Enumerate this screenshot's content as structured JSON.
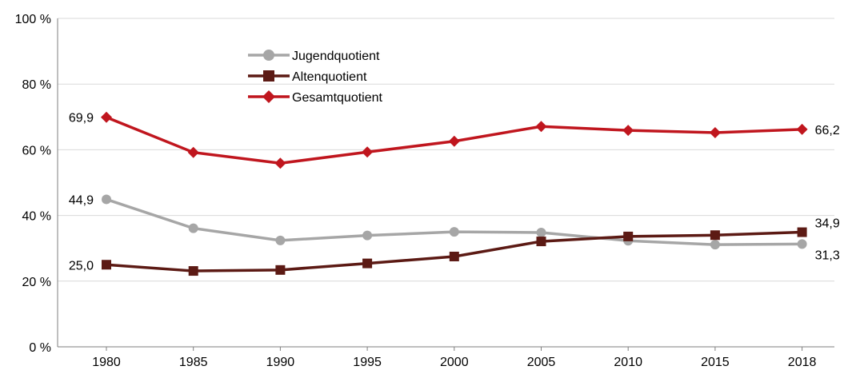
{
  "chart_data": {
    "type": "line",
    "title": "",
    "xlabel": "",
    "ylabel": "",
    "x": [
      "1980",
      "1985",
      "1990",
      "1995",
      "2000",
      "2005",
      "2010",
      "2015",
      "2018"
    ],
    "ylim": [
      0,
      100
    ],
    "y_ticks": [
      0,
      20,
      40,
      60,
      80,
      100
    ],
    "y_tick_labels": [
      "0 %",
      "20 %",
      "40 %",
      "60 %",
      "80 %",
      "100 %"
    ],
    "grid": "horizontal",
    "legend_position": "top-left",
    "series": [
      {
        "name": "Jugendquotient",
        "color": "#a6a6a6",
        "marker": "circle",
        "values": [
          44.9,
          36.1,
          32.4,
          33.9,
          35.0,
          34.8,
          32.3,
          31.1,
          31.3
        ]
      },
      {
        "name": "Altenquotient",
        "color": "#5c1a14",
        "marker": "square",
        "values": [
          25.0,
          23.1,
          23.4,
          25.4,
          27.5,
          32.1,
          33.6,
          34.0,
          34.9
        ]
      },
      {
        "name": "Gesamtquotient",
        "color": "#c0161e",
        "marker": "diamond",
        "values": [
          69.9,
          59.2,
          55.9,
          59.3,
          62.6,
          67.1,
          65.9,
          65.2,
          66.2
        ]
      }
    ],
    "data_labels": [
      {
        "series": 2,
        "index": 0,
        "text": "69,9",
        "side": "left"
      },
      {
        "series": 2,
        "index": 8,
        "text": "66,2",
        "side": "right"
      },
      {
        "series": 0,
        "index": 0,
        "text": "44,9",
        "side": "left"
      },
      {
        "series": 0,
        "index": 8,
        "text": "31,3",
        "side": "right-below"
      },
      {
        "series": 1,
        "index": 0,
        "text": "25,0",
        "side": "left"
      },
      {
        "series": 1,
        "index": 8,
        "text": "34,9",
        "side": "right-above"
      }
    ]
  }
}
